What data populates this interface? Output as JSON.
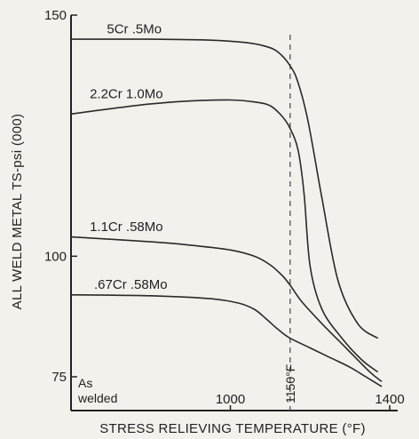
{
  "chart_data": {
    "type": "line",
    "xlabel": "STRESS RELIEVING TEMPERATURE (°F)",
    "ylabel": "ALL WELD METAL TS-psi (000)",
    "xlim": [
      600,
      1420
    ],
    "ylim": [
      68,
      150
    ],
    "x_ticks": [
      {
        "value": 1000,
        "label": "1000"
      },
      {
        "value": 1400,
        "label": "1400"
      }
    ],
    "y_ticks": [
      {
        "value": 150,
        "label": "150"
      },
      {
        "value": 100,
        "label": "100"
      },
      {
        "value": 75,
        "label": "75"
      }
    ],
    "x_origin_label": "As welded",
    "reference_line": {
      "x": 1150,
      "label": "1150°F"
    },
    "series": [
      {
        "name": "5Cr .5Mo",
        "x": [
          600,
          800,
          950,
          1040,
          1090,
          1120,
          1150,
          1170,
          1195,
          1230,
          1270,
          1320,
          1370
        ],
        "y": [
          145,
          145,
          144.8,
          144.3,
          143.5,
          142.3,
          139.5,
          136,
          128,
          112,
          95,
          86,
          83
        ]
      },
      {
        "name": "2.2Cr 1.0Mo",
        "x": [
          600,
          700,
          800,
          900,
          1000,
          1060,
          1100,
          1130,
          1150,
          1170,
          1185,
          1200,
          1230,
          1280,
          1330,
          1370
        ],
        "y": [
          129.5,
          130.6,
          131.6,
          132.2,
          132.4,
          132,
          131.2,
          129,
          126.5,
          122,
          113,
          98,
          89,
          83,
          78.5,
          76
        ]
      },
      {
        "name": "1.1Cr .58Mo",
        "x": [
          600,
          800,
          900,
          1000,
          1060,
          1100,
          1130,
          1150,
          1180,
          1230,
          1290,
          1350,
          1380
        ],
        "y": [
          104,
          103,
          102.3,
          101.3,
          100,
          98.2,
          96,
          94,
          90.5,
          86,
          81,
          76,
          74
        ]
      },
      {
        "name": ".67Cr .58Mo",
        "x": [
          600,
          800,
          950,
          1020,
          1060,
          1090,
          1120,
          1150,
          1200,
          1250,
          1300,
          1340,
          1380
        ],
        "y": [
          92,
          91.8,
          91.2,
          90.3,
          89,
          87,
          84.8,
          83,
          81,
          79,
          77,
          75,
          73
        ]
      }
    ],
    "series_labels": [
      {
        "text": "5Cr  .5Mo",
        "x": 690,
        "y": 146.2
      },
      {
        "text": "2.2Cr  1.0Mo",
        "x": 647,
        "y": 132.8
      },
      {
        "text": "1.1Cr  .58Mo",
        "x": 647,
        "y": 105.2
      },
      {
        "text": ".67Cr  .58Mo",
        "x": 658,
        "y": 93.2
      }
    ]
  }
}
